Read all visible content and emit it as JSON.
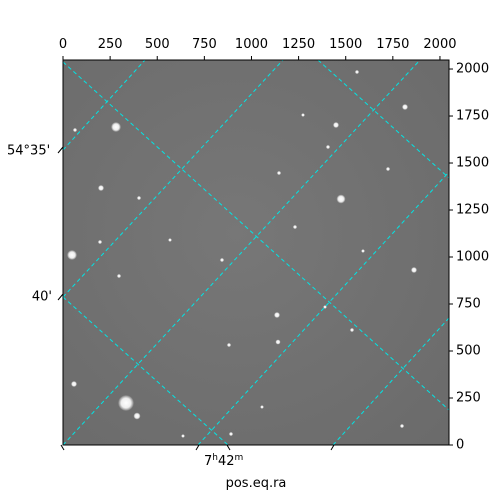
{
  "chart_data": {
    "type": "image",
    "xlabel": "pos.eq.ra",
    "xlim": [
      0,
      2048
    ],
    "ylim": [
      0,
      2048
    ],
    "xticks": [
      0,
      250,
      500,
      750,
      1000,
      1250,
      1500,
      1750,
      2000
    ],
    "yticks": [
      0,
      250,
      500,
      750,
      1000,
      1250,
      1500,
      1750,
      2000
    ],
    "ra_tick_label": [
      "7",
      "h",
      "42",
      "m"
    ],
    "dec_tick_labels": [
      "54°35'",
      "40'"
    ],
    "grid_color": "#00e5e5"
  }
}
